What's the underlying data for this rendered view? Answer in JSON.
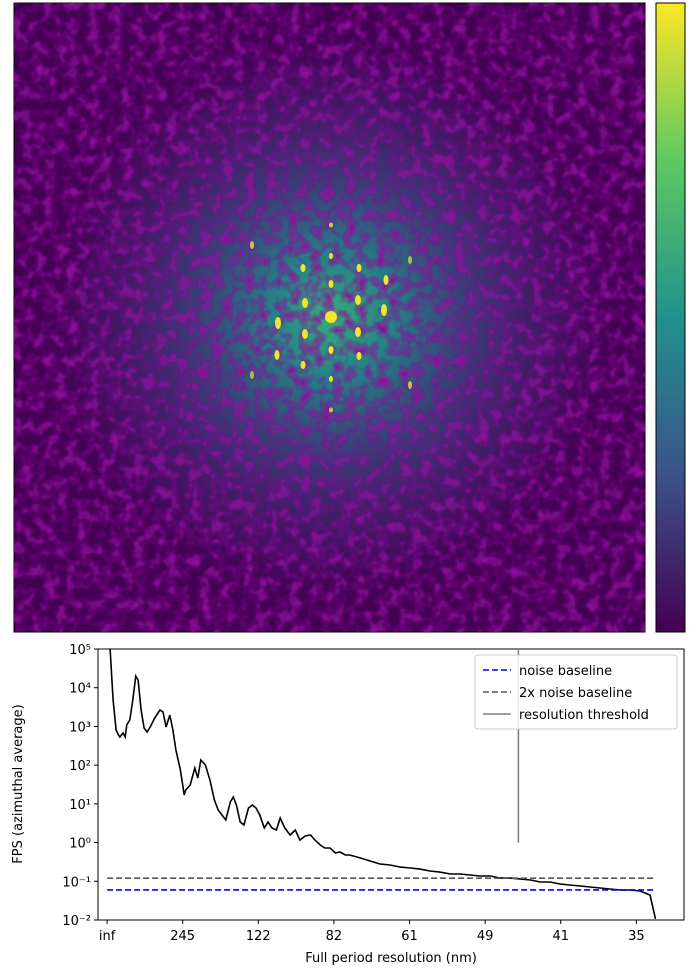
{
  "chart_data": {
    "type": "line",
    "ylabel": "FPS (azimuthal average)",
    "xlabel": "Full period resolution (nm)",
    "yscale": "log",
    "legend": "upper right",
    "xlim": [
      -0.12,
      7.63
    ],
    "ylim": [
      0.01,
      100000
    ],
    "xticks": [
      {
        "value": 0,
        "label": "inf"
      },
      {
        "value": 1,
        "label": "245"
      },
      {
        "value": 2,
        "label": "122"
      },
      {
        "value": 3,
        "label": "82"
      },
      {
        "value": 4,
        "label": "61"
      },
      {
        "value": 5,
        "label": "49"
      },
      {
        "value": 6,
        "label": "41"
      },
      {
        "value": 7,
        "label": "35"
      }
    ],
    "yticks": [
      {
        "value": 0.01,
        "label": "10⁻²"
      },
      {
        "value": 0.1,
        "label": "10⁻¹"
      },
      {
        "value": 1,
        "label": "10⁰"
      },
      {
        "value": 10,
        "label": "10¹"
      },
      {
        "value": 100,
        "label": "10²"
      },
      {
        "value": 1000,
        "label": "10³"
      },
      {
        "value": 10000,
        "label": "10⁴"
      },
      {
        "value": 100000,
        "label": "10⁵"
      }
    ],
    "series": [
      {
        "color": "#000000",
        "style": "solid",
        "x": [
          0.04,
          0.08,
          0.12,
          0.15,
          0.17,
          0.21,
          0.24,
          0.26,
          0.3,
          0.34,
          0.38,
          0.41,
          0.45,
          0.49,
          0.53,
          0.57,
          0.63,
          0.7,
          0.74,
          0.78,
          0.83,
          0.87,
          0.91,
          0.97,
          1.02,
          1.04,
          1.1,
          1.16,
          1.2,
          1.24,
          1.3,
          1.36,
          1.42,
          1.47,
          1.52,
          1.57,
          1.63,
          1.67,
          1.71,
          1.76,
          1.81,
          1.87,
          1.92,
          1.97,
          2.02,
          2.08,
          2.13,
          2.18,
          2.24,
          2.29,
          2.35,
          2.42,
          2.49,
          2.55,
          2.62,
          2.69,
          2.75,
          2.82,
          2.88,
          2.95,
          3.02,
          3.08,
          3.15,
          3.21,
          3.35,
          3.48,
          3.61,
          3.74,
          3.88,
          4.01,
          4.14,
          4.27,
          4.4,
          4.54,
          4.67,
          4.8,
          4.93,
          5.07,
          5.2,
          5.33,
          5.46,
          5.6,
          5.73,
          5.86,
          5.99,
          6.12,
          6.26,
          6.39,
          6.52,
          6.65,
          6.79,
          6.92,
          7.05,
          7.18,
          7.25,
          7.26
        ],
        "values": [
          100000,
          4820,
          809,
          600,
          533,
          676,
          533,
          1090,
          1470,
          4820,
          20000,
          15800,
          2650,
          910,
          718,
          967,
          1650,
          2650,
          2360,
          967,
          1970,
          809,
          246,
          74.9,
          16.9,
          22.8,
          30.7,
          84.3,
          46.6,
          136,
          101,
          41.3,
          12.6,
          6.93,
          5.15,
          3.83,
          11.2,
          15.0,
          9.33,
          3.4,
          2.84,
          7.82,
          9.33,
          7.82,
          5.15,
          2.38,
          3.4,
          2.38,
          2.11,
          4.31,
          2.38,
          1.57,
          2.11,
          1.16,
          1.48,
          1.57,
          1.16,
          0.865,
          0.724,
          0.724,
          0.537,
          0.57,
          0.477,
          0.477,
          0.399,
          0.334,
          0.279,
          0.263,
          0.233,
          0.22,
          0.207,
          0.184,
          0.173,
          0.154,
          0.154,
          0.145,
          0.137,
          0.137,
          0.121,
          0.121,
          0.115,
          0.108,
          0.0957,
          0.0957,
          0.0851,
          0.0801,
          0.0755,
          0.0712,
          0.067,
          0.0631,
          0.0595,
          0.0595,
          0.0561,
          0.0442,
          0.0112,
          0.0112
        ]
      },
      {
        "name": "noise baseline",
        "color": "#0000ff",
        "style": "dashed",
        "x": [
          0,
          7.26
        ],
        "values": [
          0.06,
          0.06
        ]
      },
      {
        "name": "2x noise baseline",
        "color": "#555555",
        "style": "dashed",
        "x": [
          0,
          7.26
        ],
        "values": [
          0.12,
          0.12
        ]
      },
      {
        "name": "resolution threshold",
        "color": "#808080",
        "style": "solid",
        "x": [
          5.44,
          5.44
        ],
        "values": [
          1,
          100000
        ]
      }
    ]
  }
}
